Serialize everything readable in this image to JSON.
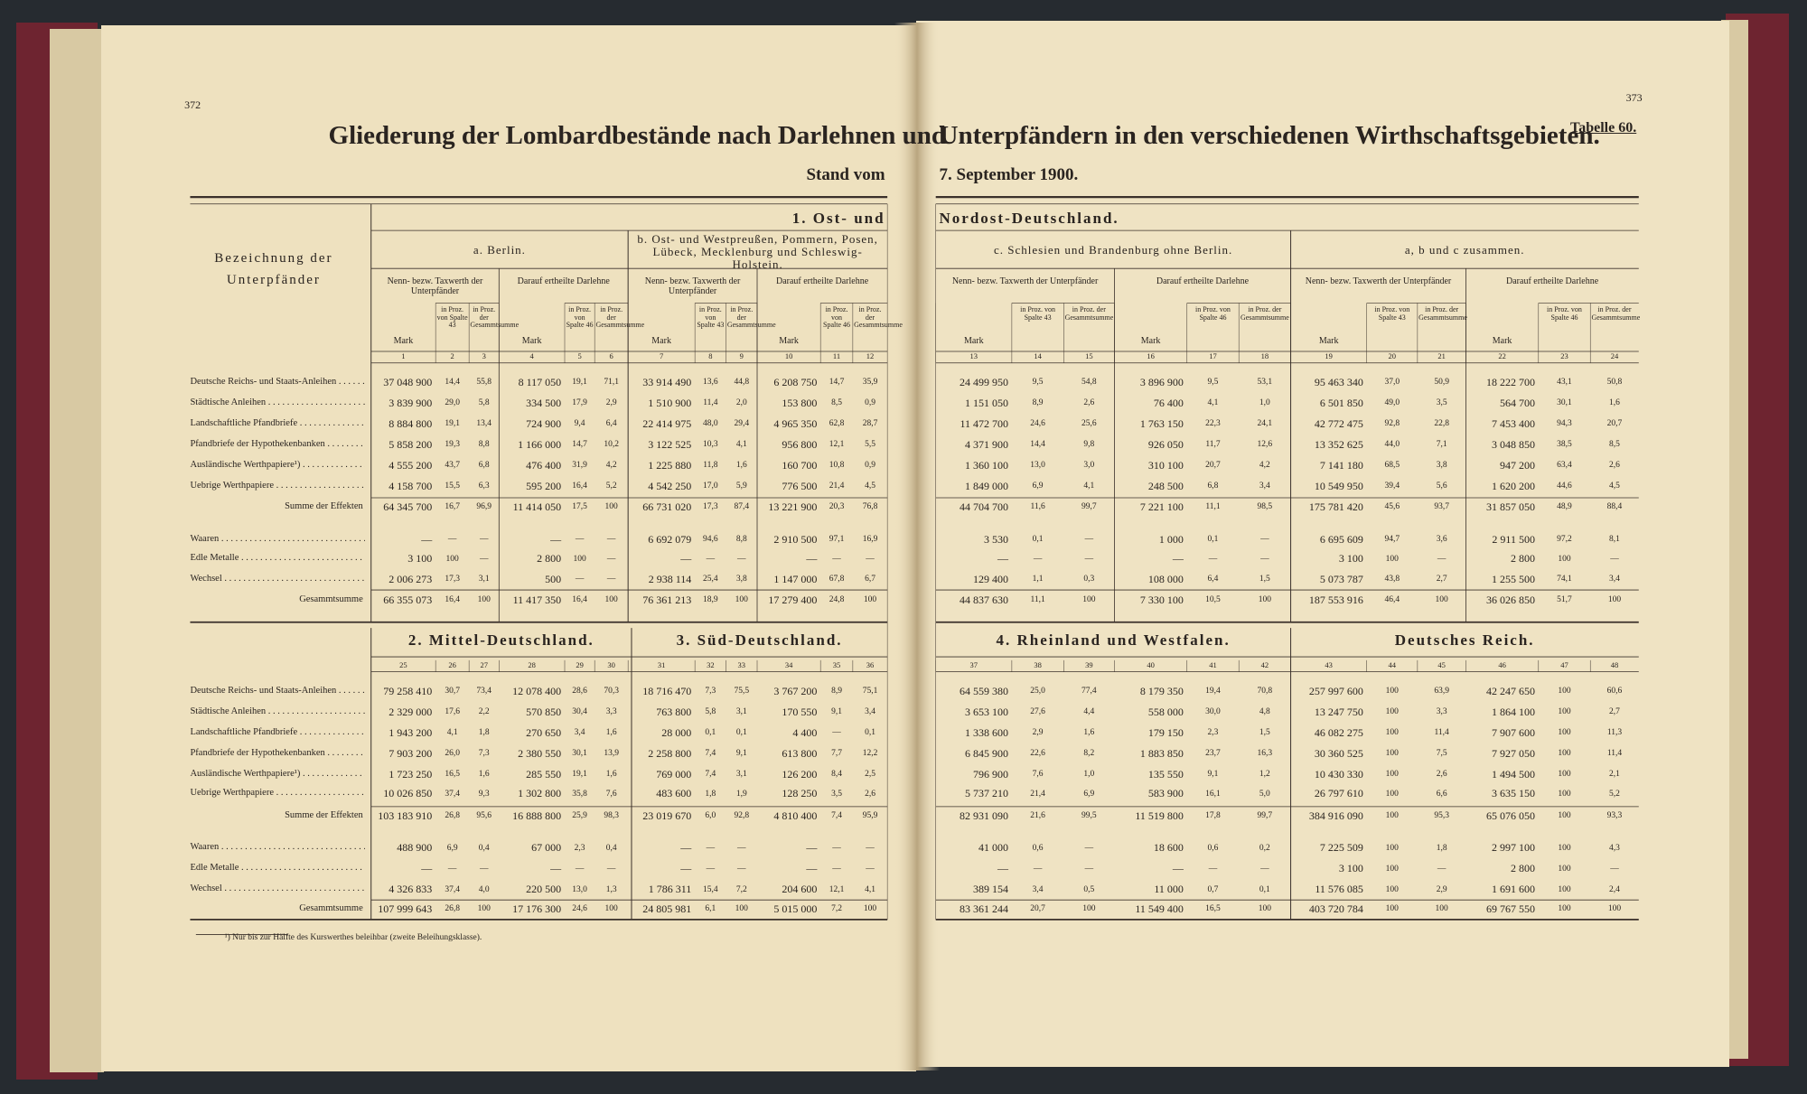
{
  "page_left": "372",
  "page_right": "373",
  "title_left": "Gliederung der Lombardbestände nach Darlehnen und",
  "title_right": "Unterpfändern in den verschiedenen Wirthschaftsgebieten.",
  "table_label": "Tabelle 60.",
  "date_left": "Stand vom",
  "date_right": "7. September 1900.",
  "stub_header": "Bezeichnung der Unterpfänder",
  "subgroup_heads": [
    "Nenn- bezw. Taxwerth der Unterpfänder",
    "Darauf ertheilte Darlehne"
  ],
  "column_heads": [
    "Mark",
    "in Proz. von Spalte 43",
    "in Proz. der Gesammtsumme",
    "Mark",
    "in Proz. von Spalte 46",
    "in Proz. der Gesammtsumme"
  ],
  "row_labels": [
    "Deutsche Reichs- und Staats-Anleihen",
    "Städtische Anleihen",
    "Landschaftliche Pfandbriefe",
    "Pfandbriefe der Hypothekenbanken",
    "Ausländische Werthpapiere¹)",
    "Uebrige Werthpapiere",
    "Summe der Effekten",
    "Waaren",
    "Edle Metalle",
    "Wechsel",
    "Gesammtsumme"
  ],
  "section1": {
    "title_left": "1. Ost- und",
    "title_right": "Nordost-Deutschland.",
    "groups": [
      "a. Berlin.",
      "b. Ost- und Westpreußen, Pommern, Posen, Lübeck, Mecklenburg und Schleswig-Holstein.",
      "c. Schlesien und Brandenburg ohne Berlin.",
      "a, b und c zusammen."
    ],
    "column_numbers": [
      1,
      2,
      3,
      4,
      5,
      6,
      7,
      8,
      9,
      10,
      11,
      12,
      13,
      14,
      15,
      16,
      17,
      18,
      19,
      20,
      21,
      22,
      23,
      24
    ],
    "rows": [
      [
        "37 048 900",
        "14,4",
        "55,8",
        "8 117 050",
        "19,1",
        "71,1",
        "33 914 490",
        "13,6",
        "44,8",
        "6 208 750",
        "14,7",
        "35,9",
        "24 499 950",
        "9,5",
        "54,8",
        "3 896 900",
        "9,5",
        "53,1",
        "95 463 340",
        "37,0",
        "50,9",
        "18 222 700",
        "43,1",
        "50,8"
      ],
      [
        "3 839 900",
        "29,0",
        "5,8",
        "334 500",
        "17,9",
        "2,9",
        "1 510 900",
        "11,4",
        "2,0",
        "153 800",
        "8,5",
        "0,9",
        "1 151 050",
        "8,9",
        "2,6",
        "76 400",
        "4,1",
        "1,0",
        "6 501 850",
        "49,0",
        "3,5",
        "564 700",
        "30,1",
        "1,6"
      ],
      [
        "8 884 800",
        "19,1",
        "13,4",
        "724 900",
        "9,4",
        "6,4",
        "22 414 975",
        "48,0",
        "29,4",
        "4 965 350",
        "62,8",
        "28,7",
        "11 472 700",
        "24,6",
        "25,6",
        "1 763 150",
        "22,3",
        "24,1",
        "42 772 475",
        "92,8",
        "22,8",
        "7 453 400",
        "94,3",
        "20,7"
      ],
      [
        "5 858 200",
        "19,3",
        "8,8",
        "1 166 000",
        "14,7",
        "10,2",
        "3 122 525",
        "10,3",
        "4,1",
        "956 800",
        "12,1",
        "5,5",
        "4 371 900",
        "14,4",
        "9,8",
        "926 050",
        "11,7",
        "12,6",
        "13 352 625",
        "44,0",
        "7,1",
        "3 048 850",
        "38,5",
        "8,5"
      ],
      [
        "4 555 200",
        "43,7",
        "6,8",
        "476 400",
        "31,9",
        "4,2",
        "1 225 880",
        "11,8",
        "1,6",
        "160 700",
        "10,8",
        "0,9",
        "1 360 100",
        "13,0",
        "3,0",
        "310 100",
        "20,7",
        "4,2",
        "7 141 180",
        "68,5",
        "3,8",
        "947 200",
        "63,4",
        "2,6"
      ],
      [
        "4 158 700",
        "15,5",
        "6,3",
        "595 200",
        "16,4",
        "5,2",
        "4 542 250",
        "17,0",
        "5,9",
        "776 500",
        "21,4",
        "4,5",
        "1 849 000",
        "6,9",
        "4,1",
        "248 500",
        "6,8",
        "3,4",
        "10 549 950",
        "39,4",
        "5,6",
        "1 620 200",
        "44,6",
        "4,5"
      ],
      [
        "64 345 700",
        "16,7",
        "96,9",
        "11 414 050",
        "17,5",
        "100",
        "66 731 020",
        "17,3",
        "87,4",
        "13 221 900",
        "20,3",
        "76,8",
        "44 704 700",
        "11,6",
        "99,7",
        "7 221 100",
        "11,1",
        "98,5",
        "175 781 420",
        "45,6",
        "93,7",
        "31 857 050",
        "48,9",
        "88,4"
      ],
      [
        "—",
        "—",
        "—",
        "—",
        "—",
        "—",
        "6 692 079",
        "94,6",
        "8,8",
        "2 910 500",
        "97,1",
        "16,9",
        "3 530",
        "0,1",
        "—",
        "1 000",
        "0,1",
        "—",
        "6 695 609",
        "94,7",
        "3,6",
        "2 911 500",
        "97,2",
        "8,1"
      ],
      [
        "3 100",
        "100",
        "—",
        "2 800",
        "100",
        "—",
        "—",
        "—",
        "—",
        "—",
        "—",
        "—",
        "—",
        "—",
        "—",
        "—",
        "—",
        "—",
        "3 100",
        "100",
        "—",
        "2 800",
        "100",
        "—"
      ],
      [
        "2 006 273",
        "17,3",
        "3,1",
        "500",
        "—",
        "—",
        "2 938 114",
        "25,4",
        "3,8",
        "1 147 000",
        "67,8",
        "6,7",
        "129 400",
        "1,1",
        "0,3",
        "108 000",
        "6,4",
        "1,5",
        "5 073 787",
        "43,8",
        "2,7",
        "1 255 500",
        "74,1",
        "3,4"
      ],
      [
        "66 355 073",
        "16,4",
        "100",
        "11 417 350",
        "16,4",
        "100",
        "76 361 213",
        "18,9",
        "100",
        "17 279 400",
        "24,8",
        "100",
        "44 837 630",
        "11,1",
        "100",
        "7 330 100",
        "10,5",
        "100",
        "187 553 916",
        "46,4",
        "100",
        "36 026 850",
        "51,7",
        "100"
      ]
    ]
  },
  "section2": {
    "groups": [
      "2. Mittel-Deutschland.",
      "3. Süd-Deutschland.",
      "4. Rheinland und Westfalen.",
      "Deutsches Reich."
    ],
    "column_numbers": [
      25,
      26,
      27,
      28,
      29,
      30,
      31,
      32,
      33,
      34,
      35,
      36,
      37,
      38,
      39,
      40,
      41,
      42,
      43,
      44,
      45,
      46,
      47,
      48
    ],
    "rows": [
      [
        "79 258 410",
        "30,7",
        "73,4",
        "12 078 400",
        "28,6",
        "70,3",
        "18 716 470",
        "7,3",
        "75,5",
        "3 767 200",
        "8,9",
        "75,1",
        "64 559 380",
        "25,0",
        "77,4",
        "8 179 350",
        "19,4",
        "70,8",
        "257 997 600",
        "100",
        "63,9",
        "42 247 650",
        "100",
        "60,6"
      ],
      [
        "2 329 000",
        "17,6",
        "2,2",
        "570 850",
        "30,4",
        "3,3",
        "763 800",
        "5,8",
        "3,1",
        "170 550",
        "9,1",
        "3,4",
        "3 653 100",
        "27,6",
        "4,4",
        "558 000",
        "30,0",
        "4,8",
        "13 247 750",
        "100",
        "3,3",
        "1 864 100",
        "100",
        "2,7"
      ],
      [
        "1 943 200",
        "4,1",
        "1,8",
        "270 650",
        "3,4",
        "1,6",
        "28 000",
        "0,1",
        "0,1",
        "4 400",
        "—",
        "0,1",
        "1 338 600",
        "2,9",
        "1,6",
        "179 150",
        "2,3",
        "1,5",
        "46 082 275",
        "100",
        "11,4",
        "7 907 600",
        "100",
        "11,3"
      ],
      [
        "7 903 200",
        "26,0",
        "7,3",
        "2 380 550",
        "30,1",
        "13,9",
        "2 258 800",
        "7,4",
        "9,1",
        "613 800",
        "7,7",
        "12,2",
        "6 845 900",
        "22,6",
        "8,2",
        "1 883 850",
        "23,7",
        "16,3",
        "30 360 525",
        "100",
        "7,5",
        "7 927 050",
        "100",
        "11,4"
      ],
      [
        "1 723 250",
        "16,5",
        "1,6",
        "285 550",
        "19,1",
        "1,6",
        "769 000",
        "7,4",
        "3,1",
        "126 200",
        "8,4",
        "2,5",
        "796 900",
        "7,6",
        "1,0",
        "135 550",
        "9,1",
        "1,2",
        "10 430 330",
        "100",
        "2,6",
        "1 494 500",
        "100",
        "2,1"
      ],
      [
        "10 026 850",
        "37,4",
        "9,3",
        "1 302 800",
        "35,8",
        "7,6",
        "483 600",
        "1,8",
        "1,9",
        "128 250",
        "3,5",
        "2,6",
        "5 737 210",
        "21,4",
        "6,9",
        "583 900",
        "16,1",
        "5,0",
        "26 797 610",
        "100",
        "6,6",
        "3 635 150",
        "100",
        "5,2"
      ],
      [
        "103 183 910",
        "26,8",
        "95,6",
        "16 888 800",
        "25,9",
        "98,3",
        "23 019 670",
        "6,0",
        "92,8",
        "4 810 400",
        "7,4",
        "95,9",
        "82 931 090",
        "21,6",
        "99,5",
        "11 519 800",
        "17,8",
        "99,7",
        "384 916 090",
        "100",
        "95,3",
        "65 076 050",
        "100",
        "93,3"
      ],
      [
        "488 900",
        "6,9",
        "0,4",
        "67 000",
        "2,3",
        "0,4",
        "—",
        "—",
        "—",
        "—",
        "—",
        "—",
        "41 000",
        "0,6",
        "—",
        "18 600",
        "0,6",
        "0,2",
        "7 225 509",
        "100",
        "1,8",
        "2 997 100",
        "100",
        "4,3"
      ],
      [
        "—",
        "—",
        "—",
        "—",
        "—",
        "—",
        "—",
        "—",
        "—",
        "—",
        "—",
        "—",
        "—",
        "—",
        "—",
        "—",
        "—",
        "—",
        "3 100",
        "100",
        "—",
        "2 800",
        "100",
        "—"
      ],
      [
        "4 326 833",
        "37,4",
        "4,0",
        "220 500",
        "13,0",
        "1,3",
        "1 786 311",
        "15,4",
        "7,2",
        "204 600",
        "12,1",
        "4,1",
        "389 154",
        "3,4",
        "0,5",
        "11 000",
        "0,7",
        "0,1",
        "11 576 085",
        "100",
        "2,9",
        "1 691 600",
        "100",
        "2,4"
      ],
      [
        "107 999 643",
        "26,8",
        "100",
        "17 176 300",
        "24,6",
        "100",
        "24 805 981",
        "6,1",
        "100",
        "5 015 000",
        "7,2",
        "100",
        "83 361 244",
        "20,7",
        "100",
        "11 549 400",
        "16,5",
        "100",
        "403 720 784",
        "100",
        "100",
        "69 767 550",
        "100",
        "100"
      ]
    ]
  },
  "footnote": "¹) Nur bis zur Hälfte des Kurswerthes beleihbar (zweite Beleihungsklasse)."
}
